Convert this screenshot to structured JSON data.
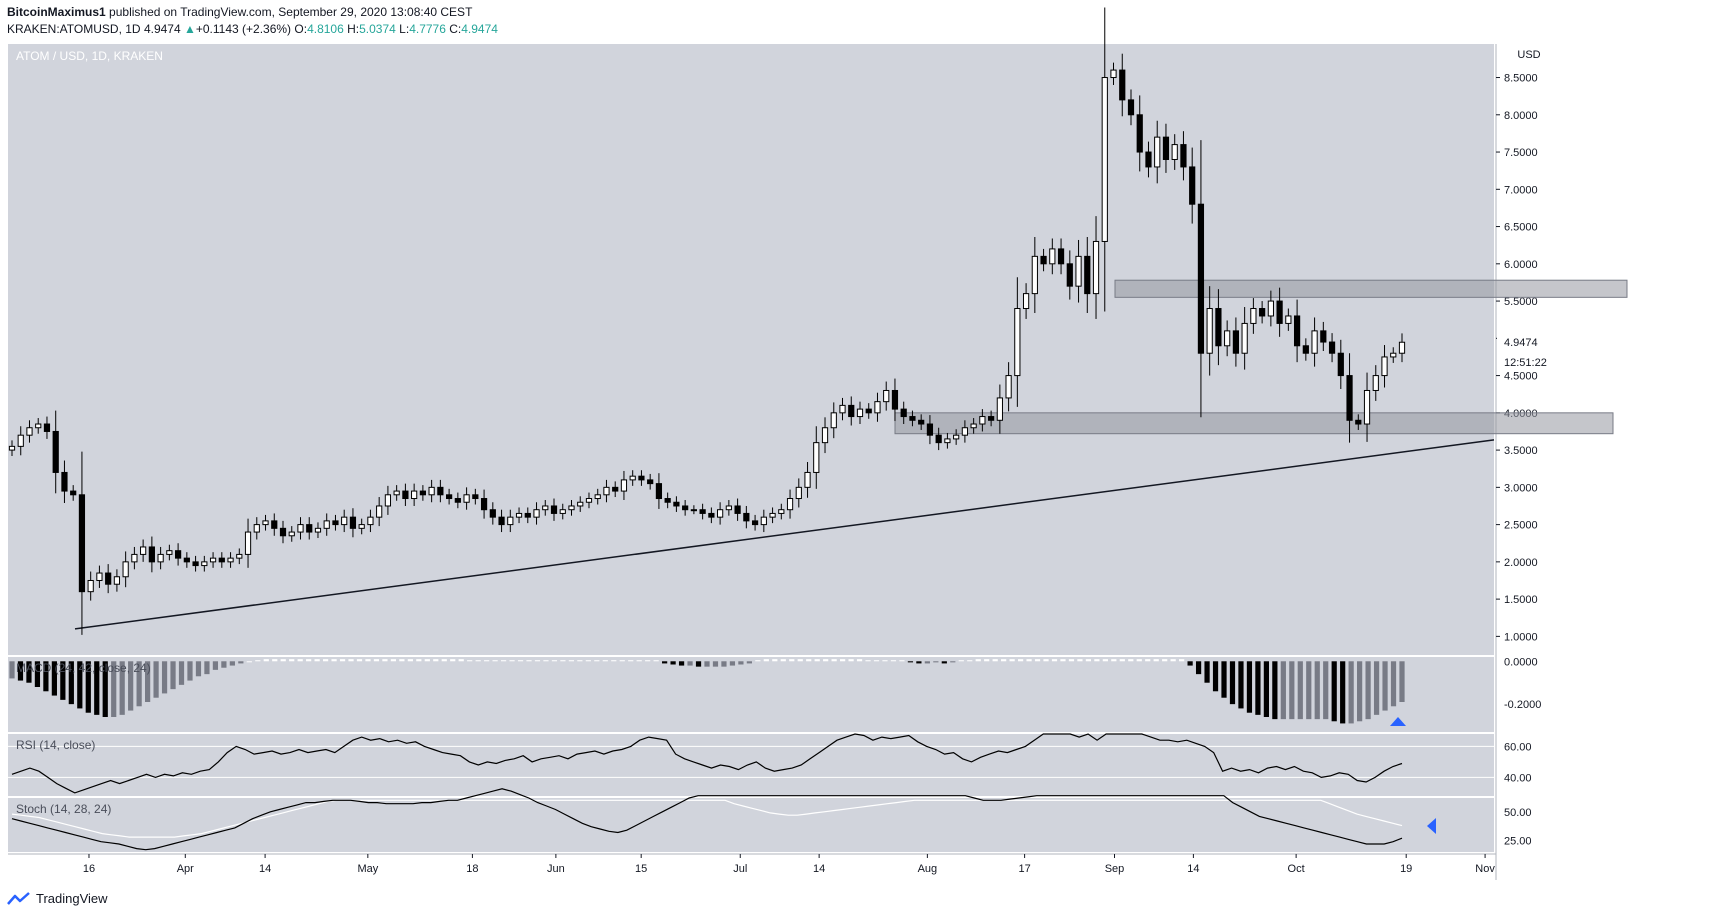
{
  "header": {
    "author": "BitcoinMaximus1",
    "published_text": "published on TradingView.com, September 29, 2020 13:08:40 CEST",
    "symbol": "KRAKEN:ATOMUSD, 1D",
    "last": "4.9474",
    "change_arrow": "▲",
    "change": "+0.1143 (+2.36%)",
    "o_label": "O:",
    "o_val": "4.8106",
    "h_label": "H:",
    "h_val": "5.0374",
    "l_label": "L:",
    "l_val": "4.7776",
    "c_label": "C:",
    "c_val": "4.9474"
  },
  "footer": {
    "brand": "TradingView",
    "logo_icon": "tradingview-logo-icon"
  },
  "colors": {
    "pane_bg": "#d1d4dc",
    "accent_blue": "#2962ff",
    "axis_text": "#131722"
  },
  "chart_data": [
    {
      "type": "candlestick",
      "title": "ATOM / USD, 1D, KRAKEN",
      "unit": "USD",
      "y_ticks": [
        "8.5000",
        "8.0000",
        "7.5000",
        "7.0000",
        "6.5000",
        "6.0000",
        "5.5000",
        "5.0000",
        "4.5000",
        "4.0000",
        "3.5000",
        "3.0000",
        "2.5000",
        "2.0000",
        "1.5000",
        "1.0000"
      ],
      "x_ticks": [
        "16",
        "Apr",
        "14",
        "May",
        "18",
        "Jun",
        "15",
        "Jul",
        "14",
        "Aug",
        "17",
        "Sep",
        "14",
        "Oct",
        "19",
        "Nov"
      ],
      "last_price_label": "4.9474",
      "countdown_label": "12:51:22",
      "close_series": [
        3.55,
        3.7,
        3.8,
        3.85,
        3.75,
        3.2,
        2.95,
        2.9,
        1.6,
        1.75,
        1.85,
        1.7,
        1.8,
        2.0,
        2.1,
        2.2,
        2.0,
        2.1,
        2.15,
        2.05,
        2.0,
        1.95,
        2.0,
        2.05,
        2.0,
        2.05,
        2.1,
        2.4,
        2.5,
        2.55,
        2.45,
        2.35,
        2.4,
        2.5,
        2.4,
        2.45,
        2.55,
        2.5,
        2.6,
        2.45,
        2.5,
        2.6,
        2.75,
        2.9,
        2.95,
        2.85,
        2.95,
        2.9,
        3.0,
        2.9,
        2.85,
        2.8,
        2.9,
        2.85,
        2.7,
        2.6,
        2.5,
        2.6,
        2.65,
        2.6,
        2.7,
        2.75,
        2.65,
        2.7,
        2.75,
        2.8,
        2.85,
        2.9,
        3.0,
        2.95,
        3.1,
        3.15,
        3.1,
        3.05,
        2.85,
        2.8,
        2.75,
        2.7,
        2.7,
        2.65,
        2.6,
        2.7,
        2.75,
        2.65,
        2.55,
        2.5,
        2.6,
        2.65,
        2.7,
        2.85,
        3.0,
        3.2,
        3.6,
        3.8,
        4.0,
        4.1,
        3.95,
        4.05,
        4.0,
        4.15,
        4.3,
        4.05,
        3.95,
        3.9,
        3.85,
        3.7,
        3.6,
        3.65,
        3.7,
        3.8,
        3.85,
        3.95,
        3.9,
        4.2,
        4.5,
        5.4,
        5.6,
        6.1,
        6.0,
        6.2,
        6.0,
        5.7,
        6.1,
        5.6,
        6.3,
        8.5,
        8.6,
        8.2,
        8.0,
        7.5,
        7.3,
        7.7,
        7.4,
        7.6,
        7.3,
        6.8,
        4.8,
        5.4,
        4.9,
        5.1,
        4.8,
        5.2,
        5.4,
        5.3,
        5.5,
        5.2,
        5.3,
        4.9,
        4.8,
        5.1,
        4.95,
        4.8,
        4.5,
        3.9,
        3.85,
        4.3,
        4.5,
        4.75,
        4.8,
        4.9474
      ],
      "support_zones": [
        {
          "low": 3.72,
          "high": 4.0
        },
        {
          "low": 5.55,
          "high": 5.78
        }
      ],
      "trendline": [
        {
          "x": "Mar 13",
          "y": 1.1
        },
        {
          "x": "Oct 27",
          "y": 3.85
        }
      ]
    },
    {
      "type": "histogram",
      "title": "MACD (24, 42, close, 24)",
      "y_ticks": [
        "0.0000",
        "-0.2000"
      ],
      "values": [
        -0.08,
        -0.09,
        -0.1,
        -0.12,
        -0.14,
        -0.16,
        -0.18,
        -0.2,
        -0.22,
        -0.24,
        -0.25,
        -0.26,
        -0.26,
        -0.25,
        -0.23,
        -0.21,
        -0.19,
        -0.17,
        -0.15,
        -0.13,
        -0.11,
        -0.09,
        -0.07,
        -0.06,
        -0.04,
        -0.03,
        -0.02,
        -0.01,
        0.0,
        0.005,
        0.01,
        0.01,
        0.01,
        0.01,
        0.01,
        0.01,
        0.01,
        0.01,
        0.01,
        0.01,
        0.01,
        0.01,
        0.01,
        0.01,
        0.01,
        0.01,
        0.01,
        0.01,
        0.01,
        0.01,
        0.01,
        0.01,
        0.01,
        0.01,
        0.005,
        0.005,
        0.005,
        0.005,
        0.005,
        0.005,
        0.005,
        0.005,
        0.005,
        0.005,
        0.005,
        0.005,
        0.005,
        0.005,
        0.005,
        0.005,
        0.005,
        0.005,
        0.005,
        0.005,
        0.005,
        0.005,
        0.005,
        -0.01,
        -0.015,
        -0.02,
        -0.02,
        -0.025,
        -0.025,
        -0.025,
        -0.025,
        -0.02,
        -0.015,
        -0.01,
        0.005,
        0.01,
        0.01,
        0.01,
        0.01,
        0.01,
        0.01,
        0.01,
        0.01,
        0.01,
        0.01,
        0.01,
        0.01,
        0.005,
        0.005,
        0.005,
        0.005,
        0.005,
        -0.005,
        -0.01,
        -0.01,
        -0.005,
        -0.01,
        -0.005,
        0.005,
        0.005,
        0.01,
        0.01,
        0.01,
        0.01,
        0.01,
        0.01,
        0.01,
        0.01,
        0.01,
        0.01,
        0.01,
        0.01,
        0.01,
        0.01,
        0.01,
        0.01,
        0.01,
        0.01,
        0.01,
        0.01,
        0.01,
        0.01,
        0.01,
        0.01,
        0.01,
        -0.02,
        -0.06,
        -0.1,
        -0.14,
        -0.17,
        -0.2,
        -0.22,
        -0.24,
        -0.25,
        -0.26,
        -0.27,
        -0.27,
        -0.27,
        -0.27,
        -0.27,
        -0.27,
        -0.27,
        -0.28,
        -0.29,
        -0.29,
        -0.28,
        -0.27,
        -0.25,
        -0.23,
        -0.21,
        -0.19
      ],
      "signal_marker": "triangle-up-icon"
    },
    {
      "type": "line",
      "title": "RSI (14, close)",
      "y_ticks": [
        "60.00",
        "40.00"
      ],
      "values": [
        42,
        44,
        46,
        44,
        40,
        36,
        33,
        30,
        32,
        34,
        36,
        38,
        36,
        38,
        40,
        42,
        40,
        42,
        41,
        43,
        42,
        44,
        45,
        50,
        56,
        60,
        58,
        55,
        56,
        57,
        55,
        56,
        58,
        56,
        57,
        58,
        56,
        60,
        64,
        66,
        64,
        65,
        63,
        64,
        62,
        63,
        60,
        58,
        56,
        55,
        54,
        50,
        48,
        50,
        49,
        51,
        52,
        54,
        50,
        52,
        53,
        54,
        52,
        55,
        56,
        57,
        55,
        57,
        58,
        60,
        64,
        66,
        65,
        64,
        55,
        52,
        50,
        48,
        46,
        48,
        47,
        45,
        48,
        50,
        46,
        44,
        45,
        46,
        48,
        52,
        56,
        60,
        64,
        66,
        68,
        67,
        64,
        66,
        65,
        66,
        67,
        63,
        60,
        58,
        55,
        56,
        52,
        50,
        53,
        55,
        57,
        56,
        58,
        60,
        64,
        68,
        70,
        72,
        70,
        66,
        68,
        64,
        70,
        74,
        76,
        70,
        68,
        66,
        64,
        64,
        63,
        64,
        62,
        60,
        56,
        44,
        46,
        44,
        45,
        43,
        46,
        47,
        45,
        47,
        44,
        43,
        40,
        41,
        43,
        42,
        38,
        37,
        40,
        44,
        47,
        49
      ],
      "hlines": [
        60,
        40
      ]
    },
    {
      "type": "line",
      "title": "Stoch (14, 28, 24)",
      "y_ticks": [
        "50.00",
        "25.00"
      ],
      "k_values": [
        44,
        42,
        40,
        38,
        36,
        34,
        32,
        30,
        28,
        26,
        24,
        23,
        22,
        20,
        18,
        17,
        18,
        20,
        22,
        24,
        26,
        28,
        30,
        32,
        34,
        36,
        40,
        44,
        47,
        50,
        52,
        54,
        56,
        58,
        58,
        59,
        60,
        60,
        60,
        59,
        58,
        58,
        57,
        57,
        57,
        57,
        58,
        58,
        59,
        60,
        60,
        62,
        64,
        66,
        68,
        70,
        68,
        65,
        62,
        58,
        55,
        52,
        48,
        44,
        40,
        37,
        35,
        33,
        32,
        34,
        38,
        42,
        46,
        50,
        54,
        58,
        62,
        64,
        64,
        64,
        64,
        64,
        64,
        64,
        64,
        64,
        64,
        64,
        64,
        64,
        64,
        64,
        64,
        64,
        64,
        64,
        64,
        64,
        64,
        64,
        64,
        64,
        64,
        64,
        64,
        64,
        64,
        64,
        62,
        60,
        60,
        60,
        61,
        62,
        63,
        64,
        64,
        64,
        64,
        64,
        64,
        64,
        64,
        64,
        64,
        64,
        64,
        64,
        64,
        64,
        64,
        64,
        64,
        64,
        64,
        64,
        64,
        58,
        54,
        50,
        46,
        44,
        42,
        40,
        38,
        36,
        34,
        32,
        30,
        28,
        26,
        24,
        22,
        22,
        22,
        24,
        27
      ],
      "d_values": [
        48,
        47,
        46,
        45,
        43,
        41,
        39,
        37,
        35,
        33,
        31,
        30,
        29,
        28,
        28,
        28,
        28,
        28,
        28,
        29,
        30,
        31,
        33,
        35,
        37,
        39,
        41,
        43,
        45,
        47,
        49,
        51,
        53,
        55,
        57,
        59,
        60,
        60,
        60,
        60,
        60,
        60,
        60,
        60,
        60,
        60,
        60,
        60,
        60,
        60,
        60,
        60,
        60,
        60,
        60,
        60,
        60,
        60,
        60,
        60,
        60,
        60,
        60,
        60,
        60,
        60,
        60,
        60,
        60,
        60,
        60,
        60,
        60,
        60,
        60,
        60,
        60,
        60,
        60,
        60,
        57,
        55,
        53,
        51,
        49,
        48,
        47,
        47,
        48,
        49,
        50,
        51,
        52,
        53,
        54,
        55,
        56,
        57,
        58,
        59,
        60,
        60,
        60,
        60,
        60,
        60,
        60,
        60,
        60,
        60,
        60,
        60,
        60,
        60,
        60,
        60,
        60,
        60,
        60,
        60,
        60,
        60,
        60,
        60,
        60,
        60,
        60,
        60,
        60,
        60,
        60,
        60,
        60,
        60,
        60,
        60,
        60,
        60,
        60,
        60,
        60,
        60,
        60,
        60,
        60,
        60,
        57,
        54,
        51,
        48,
        46,
        44,
        42,
        40,
        38
      ],
      "signal_marker": "triangle-left-icon"
    }
  ]
}
